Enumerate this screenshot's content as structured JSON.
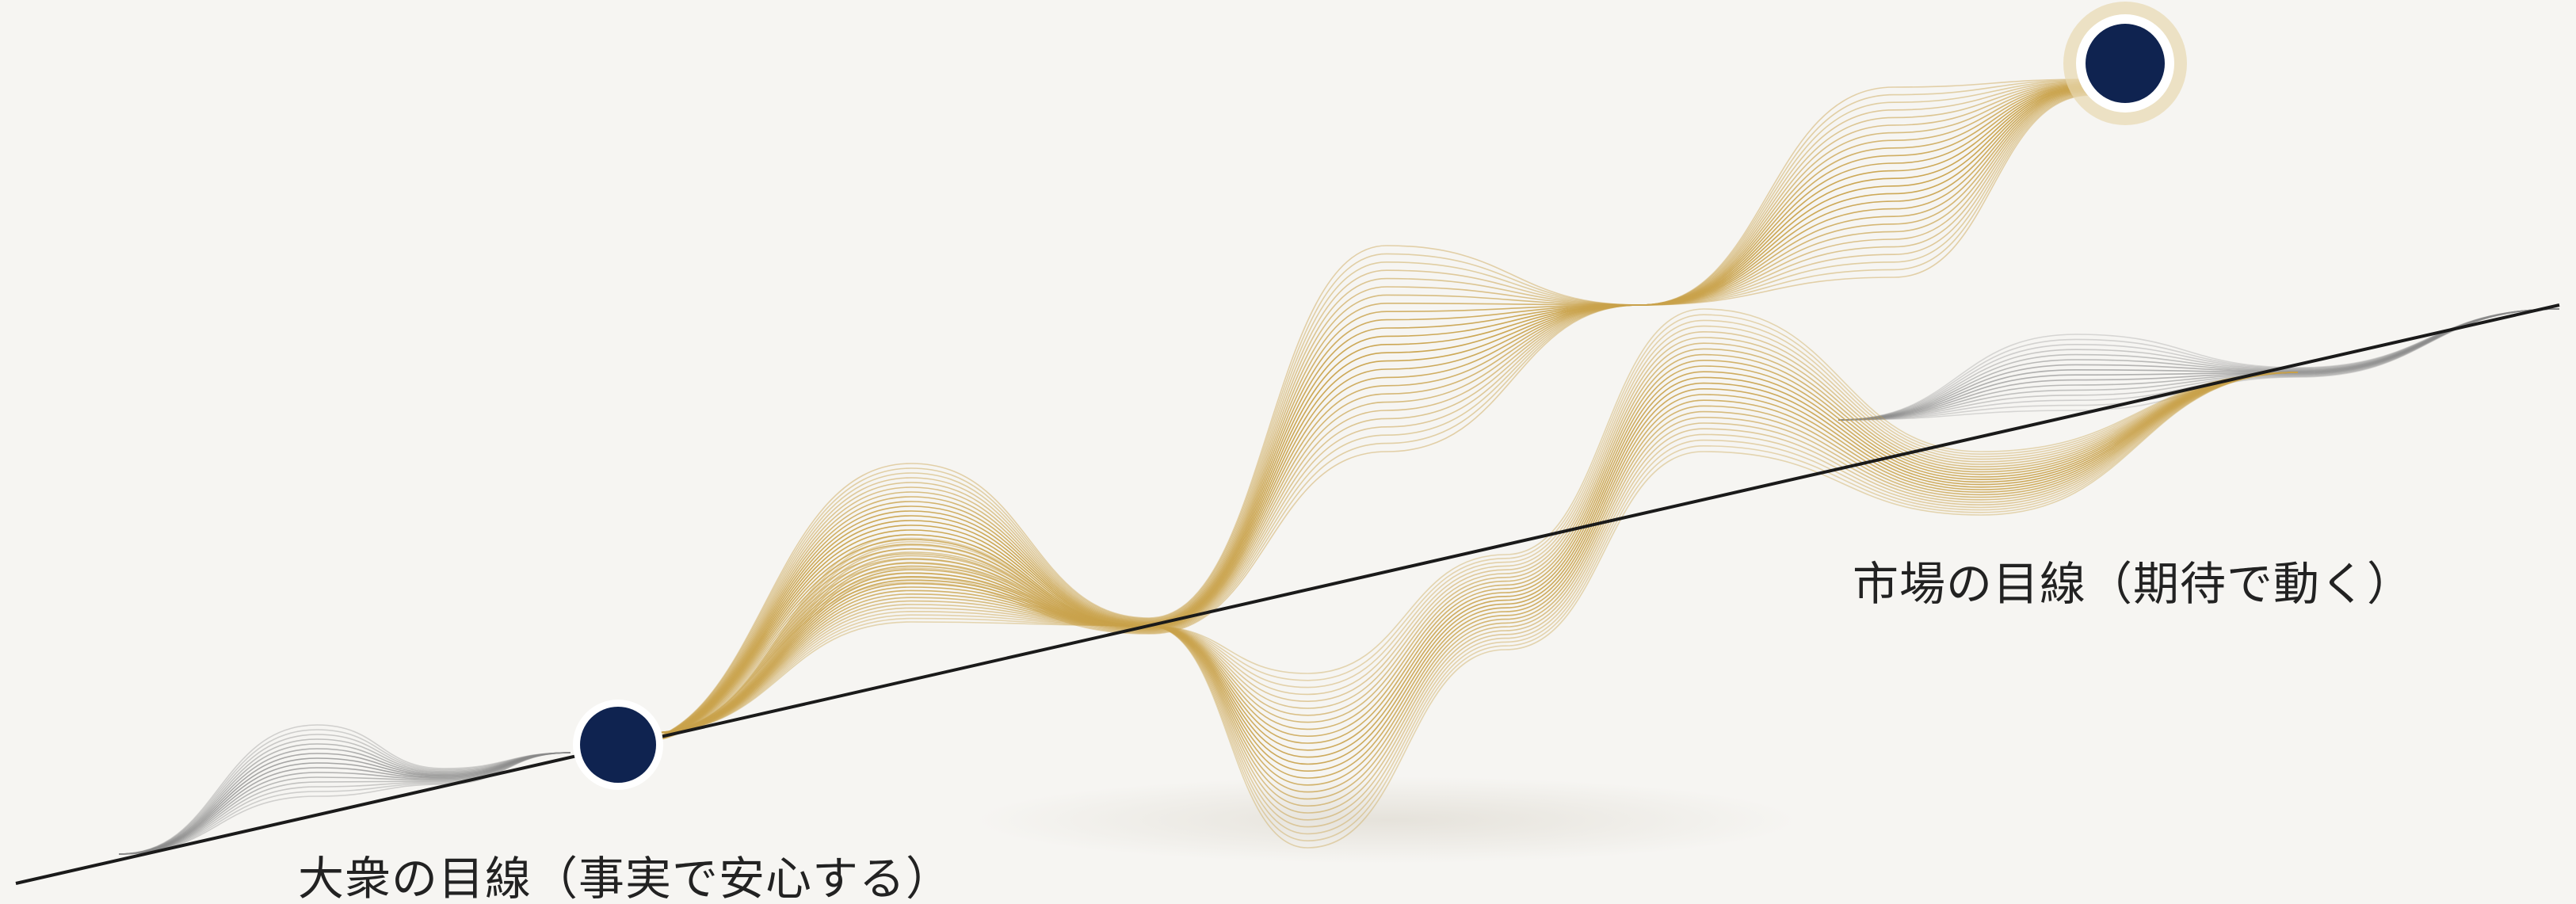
{
  "labels": {
    "public_view": "大衆の目線（事実で安心する）",
    "market_view": "市場の目線（期待で動く）"
  },
  "colors": {
    "background": "#f6f5f2",
    "baseline": "#1a1a1a",
    "gold_wave": "#c9a24b",
    "gray_wave": "#8a8a8a",
    "node_fill": "#0f2350",
    "node_halo": "#e8d9b0",
    "label_text": "#222222"
  },
  "nodes": [
    {
      "name": "public-view-node"
    },
    {
      "name": "market-view-node"
    }
  ]
}
